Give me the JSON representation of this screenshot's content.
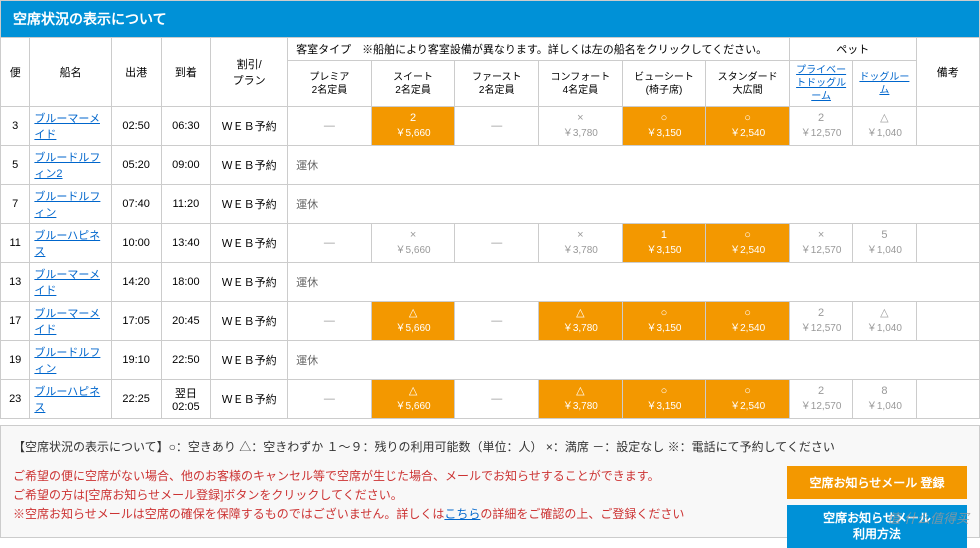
{
  "header": {
    "title": "空席状況の表示について"
  },
  "columns": {
    "service": "便",
    "ship": "船名",
    "depart": "出港",
    "arrive": "到着",
    "discount": "割引/\nプラン",
    "cabin_group": "客室タイプ　※船舶により客室設備が異なります。詳しくは左の船名をクリックしてください。",
    "pet_group": "ペット",
    "remarks": "備考",
    "cabins": [
      {
        "name": "プレミア",
        "cap": "2名定員"
      },
      {
        "name": "スイート",
        "cap": "2名定員"
      },
      {
        "name": "ファースト",
        "cap": "2名定員"
      },
      {
        "name": "コンフォート",
        "cap": "4名定員"
      },
      {
        "name": "ビューシート",
        "cap": "(椅子席)"
      },
      {
        "name": "スタンダード",
        "cap": "大広間"
      }
    ],
    "pets": [
      {
        "name": "プライベートドッグルーム"
      },
      {
        "name": "ドッグルーム"
      }
    ]
  },
  "rows": [
    {
      "no": "3",
      "ship": "ブルーマーメイド",
      "dep": "02:50",
      "arr": "06:30",
      "plan": "ＷＥＢ予約",
      "cells": [
        {
          "t": "dash"
        },
        {
          "t": "orange",
          "a": "2",
          "p": "￥5,660"
        },
        {
          "t": "dash"
        },
        {
          "t": "gray",
          "a": "×",
          "p": "￥3,780"
        },
        {
          "t": "orange",
          "a": "○",
          "p": "￥3,150"
        },
        {
          "t": "orange",
          "a": "○",
          "p": "￥2,540"
        },
        {
          "t": "gray",
          "a": "2",
          "p": "￥12,570"
        },
        {
          "t": "gray",
          "a": "△",
          "p": "￥1,040"
        }
      ]
    },
    {
      "no": "5",
      "ship": "ブルードルフィン2",
      "dep": "05:20",
      "arr": "09:00",
      "plan": "ＷＥＢ予約",
      "suspended": "運休"
    },
    {
      "no": "7",
      "ship": "ブルードルフィン",
      "dep": "07:40",
      "arr": "11:20",
      "plan": "ＷＥＢ予約",
      "suspended": "運休"
    },
    {
      "no": "11",
      "ship": "ブルーハピネス",
      "dep": "10:00",
      "arr": "13:40",
      "plan": "ＷＥＢ予約",
      "cells": [
        {
          "t": "dash"
        },
        {
          "t": "gray",
          "a": "×",
          "p": "￥5,660"
        },
        {
          "t": "dash"
        },
        {
          "t": "gray",
          "a": "×",
          "p": "￥3,780"
        },
        {
          "t": "orange",
          "a": "1",
          "p": "￥3,150"
        },
        {
          "t": "orange",
          "a": "○",
          "p": "￥2,540"
        },
        {
          "t": "gray",
          "a": "×",
          "p": "￥12,570"
        },
        {
          "t": "gray",
          "a": "5",
          "p": "￥1,040"
        }
      ]
    },
    {
      "no": "13",
      "ship": "ブルーマーメイド",
      "dep": "14:20",
      "arr": "18:00",
      "plan": "ＷＥＢ予約",
      "suspended": "運休"
    },
    {
      "no": "17",
      "ship": "ブルーマーメイド",
      "dep": "17:05",
      "arr": "20:45",
      "plan": "ＷＥＢ予約",
      "cells": [
        {
          "t": "dash"
        },
        {
          "t": "orange",
          "a": "△",
          "p": "￥5,660"
        },
        {
          "t": "dash"
        },
        {
          "t": "orange",
          "a": "△",
          "p": "￥3,780"
        },
        {
          "t": "orange",
          "a": "○",
          "p": "￥3,150"
        },
        {
          "t": "orange",
          "a": "○",
          "p": "￥2,540"
        },
        {
          "t": "gray",
          "a": "2",
          "p": "￥12,570"
        },
        {
          "t": "gray",
          "a": "△",
          "p": "￥1,040"
        }
      ]
    },
    {
      "no": "19",
      "ship": "ブルードルフィン",
      "dep": "19:10",
      "arr": "22:50",
      "plan": "ＷＥＢ予約",
      "suspended": "運休"
    },
    {
      "no": "23",
      "ship": "ブルーハピネス",
      "dep": "22:25",
      "arr": "翌日\n02:05",
      "plan": "ＷＥＢ予約",
      "cells": [
        {
          "t": "dash"
        },
        {
          "t": "orange",
          "a": "△",
          "p": "￥5,660"
        },
        {
          "t": "dash"
        },
        {
          "t": "orange",
          "a": "△",
          "p": "￥3,780"
        },
        {
          "t": "orange",
          "a": "○",
          "p": "￥3,150"
        },
        {
          "t": "orange",
          "a": "○",
          "p": "￥2,540"
        },
        {
          "t": "gray",
          "a": "2",
          "p": "￥12,570"
        },
        {
          "t": "gray",
          "a": "8",
          "p": "￥1,040"
        }
      ]
    }
  ],
  "legend": "【空席状況の表示について】○：空きあり △：空きわずか １～９：残りの利用可能数（単位：人） ×：満席 －：設定なし ※：電話にて予約してください",
  "notice": {
    "line1": "ご希望の便に空席がない場合、他のお客様のキャンセル等で空席が生じた場合、メールでお知らせすることができます。",
    "line2": "ご希望の方は[空席お知らせメール登録]ボタンをクリックしてください。",
    "line3_a": "※空席お知らせメールは空席の確保を保障するものではございません。詳しくは",
    "line3_link": "こちら",
    "line3_b": "の詳細をご確認の上、ご登録ください"
  },
  "buttons": {
    "register": "空席お知らせメール 登録",
    "usage": "空席お知らせメール\n利用方法"
  },
  "watermark": "值 什么值得买",
  "colors": {
    "header_bg": "#0091d7",
    "orange": "#f39800",
    "link": "#0066cc",
    "border": "#cccccc",
    "notice_red": "#cc3333"
  }
}
